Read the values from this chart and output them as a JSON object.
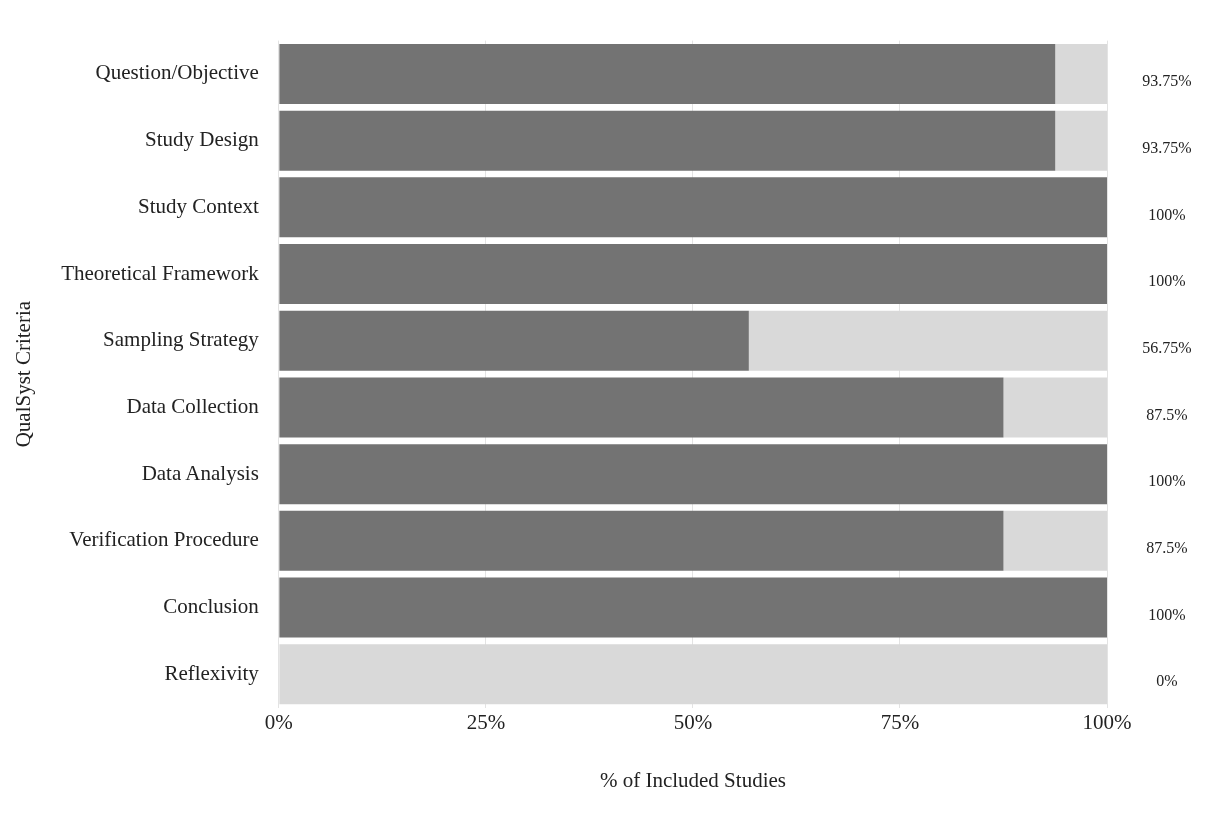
{
  "chart_data": {
    "type": "bar",
    "orientation": "horizontal",
    "stacked": true,
    "xlabel": "% of Included Studies",
    "ylabel": "QualSyst Criteria",
    "categories": [
      "Question/Objective",
      "Study Design",
      "Study Context",
      "Theoretical Framework",
      "Sampling Strategy",
      "Data Collection",
      "Data Analysis",
      "Verification Procedure",
      "Conclusion",
      "Reflexivity"
    ],
    "series": [
      {
        "color": "#737373",
        "values": [
          93.75,
          93.75,
          100,
          100,
          56.75,
          87.5,
          100,
          87.5,
          100,
          0
        ]
      },
      {
        "color": "#d9d9d9",
        "values": [
          6.25,
          6.25,
          0,
          0,
          43.25,
          12.5,
          0,
          12.5,
          0,
          100
        ]
      }
    ],
    "xlim": [
      0,
      100
    ],
    "xticks": [
      {
        "value": 0,
        "label": "0%"
      },
      {
        "value": 25,
        "label": "25%"
      },
      {
        "value": 50,
        "label": "50%"
      },
      {
        "value": 75,
        "label": "75%"
      },
      {
        "value": 100,
        "label": "100%"
      }
    ],
    "annotations": [
      "93.75%",
      "93.75%",
      "100%",
      "100%",
      "56.75%",
      "87.5%",
      "100%",
      "87.5%",
      "100%",
      "0%"
    ],
    "grid": "x",
    "legend": false
  }
}
